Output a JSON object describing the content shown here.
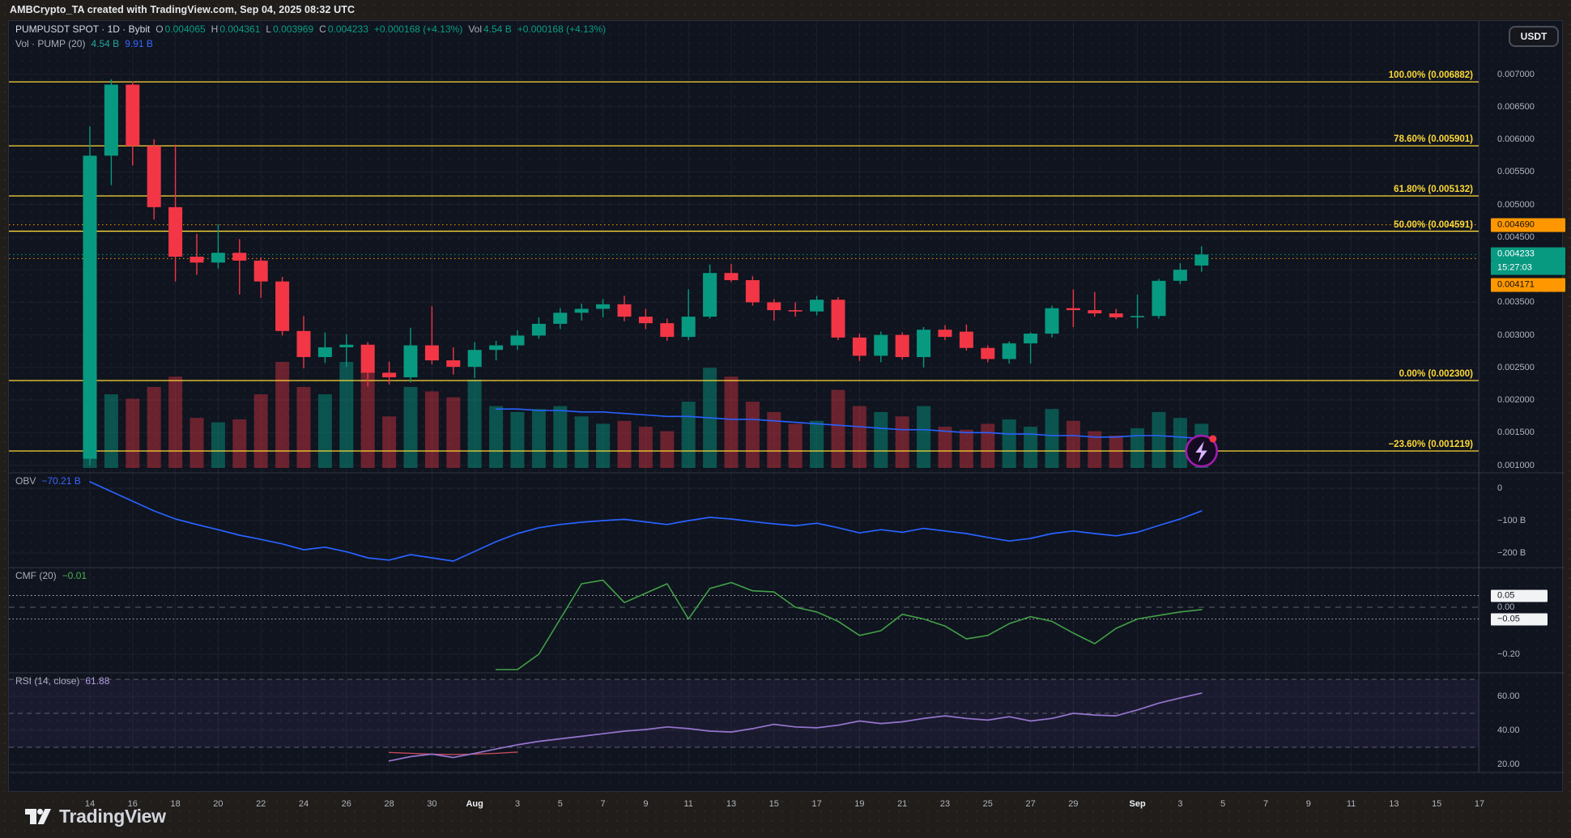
{
  "header": {
    "title": "AMBCrypto_TA created with TradingView.com, Sep 04, 2025 08:32 UTC"
  },
  "toolbar": {
    "currency_button": "USDT"
  },
  "footer": {
    "brand": "TradingView"
  },
  "colors": {
    "up": "#089981",
    "down": "#f23645",
    "vol_up": "rgba(8,153,129,0.48)",
    "vol_down": "rgba(242,54,69,0.40)",
    "fib": "#fdd835",
    "alert_orange": "#ff9800",
    "last_teal": "#089981",
    "blue": "#2962ff",
    "cmf_green": "#43a047",
    "rsi_purple": "#9575cd",
    "rsi_ma_red": "#c2495c",
    "grid": "rgba(240,243,250,0.055)",
    "separator": "rgba(255,255,255,0.14)",
    "band_fill": "rgba(126,87,194,0.10)",
    "band_line": "#9598a1"
  },
  "legend": {
    "row1": [
      {
        "t": "PUMPUSDT SPOT · 1D · Bybit",
        "k": "c-white",
        "tight": false
      },
      {
        "t": "O",
        "k": "c-dim",
        "tight": true
      },
      {
        "t": "0.004065",
        "k": "c-green",
        "tight": false
      },
      {
        "t": "H",
        "k": "c-dim",
        "tight": true
      },
      {
        "t": "0.004361",
        "k": "c-green",
        "tight": false
      },
      {
        "t": "L",
        "k": "c-dim",
        "tight": true
      },
      {
        "t": "0.003969",
        "k": "c-green",
        "tight": false
      },
      {
        "t": "C",
        "k": "c-dim",
        "tight": true
      },
      {
        "t": "0.004233",
        "k": "c-green",
        "tight": false
      },
      {
        "t": "+0.000168 (+4.13%)",
        "k": "c-green",
        "tight": false
      },
      {
        "t": "Vol",
        "k": "c-dim",
        "tight": true
      },
      {
        "t": "4.54 B",
        "k": "c-green",
        "tight": false
      },
      {
        "t": "+0.000168 (+4.13%)",
        "k": "c-green",
        "tight": false
      }
    ],
    "row2": [
      {
        "t": "Vol · PUMP (20)",
        "k": "c-dim",
        "tight": false
      },
      {
        "t": "4.54 B",
        "k": "c-teal",
        "tight": false
      },
      {
        "t": "9.91 B",
        "k": "c-blue",
        "tight": false
      }
    ],
    "obv": [
      {
        "t": "OBV",
        "k": "c-dim",
        "tight": false
      },
      {
        "t": "−70.21 B",
        "k": "c-blue",
        "tight": false
      }
    ],
    "cmf": [
      {
        "t": "CMF (20)",
        "k": "c-dim",
        "tight": false
      },
      {
        "t": "−0.01",
        "k": "c-lgreen",
        "tight": false
      }
    ],
    "rsi": [
      {
        "t": "RSI (14, close)",
        "k": "c-dim",
        "tight": false
      },
      {
        "t": "61.88",
        "k": "c-purple",
        "tight": false
      }
    ]
  },
  "axes": {
    "price_ticks": [
      {
        "t": "0.007000",
        "v": 0.007
      },
      {
        "t": "0.006500",
        "v": 0.0065
      },
      {
        "t": "0.006000",
        "v": 0.006
      },
      {
        "t": "0.005500",
        "v": 0.0055
      },
      {
        "t": "0.005000",
        "v": 0.005
      },
      {
        "t": "0.004500",
        "v": 0.0045
      },
      {
        "t": "0.004000",
        "v": 0.004
      },
      {
        "t": "0.003500",
        "v": 0.0035
      },
      {
        "t": "0.003000",
        "v": 0.003
      },
      {
        "t": "0.002500",
        "v": 0.0025
      },
      {
        "t": "0.002000",
        "v": 0.002
      },
      {
        "t": "0.001500",
        "v": 0.0015
      },
      {
        "t": "0.001000",
        "v": 0.001
      }
    ],
    "obv_ticks": [
      {
        "t": "0",
        "v": 0
      },
      {
        "t": "−100 B",
        "v": -100
      },
      {
        "t": "−200 B",
        "v": -200
      }
    ],
    "cmf_ticks": [
      {
        "t": "0.05",
        "v": 0.05,
        "boxed": true
      },
      {
        "t": "0.00",
        "v": 0.0,
        "boxed": false
      },
      {
        "t": "−0.05",
        "v": -0.05,
        "boxed": true
      },
      {
        "t": "−0.20",
        "v": -0.2,
        "boxed": false
      }
    ],
    "rsi_ticks": [
      {
        "t": "60.00",
        "v": 60
      },
      {
        "t": "40.00",
        "v": 40
      },
      {
        "t": "20.00",
        "v": 20
      }
    ],
    "x_ticks": [
      {
        "t": "14",
        "i": 0,
        "major": false
      },
      {
        "t": "16",
        "i": 2,
        "major": false
      },
      {
        "t": "18",
        "i": 4,
        "major": false
      },
      {
        "t": "20",
        "i": 6,
        "major": false
      },
      {
        "t": "22",
        "i": 8,
        "major": false
      },
      {
        "t": "24",
        "i": 10,
        "major": false
      },
      {
        "t": "26",
        "i": 12,
        "major": false
      },
      {
        "t": "28",
        "i": 14,
        "major": false
      },
      {
        "t": "30",
        "i": 16,
        "major": false
      },
      {
        "t": "Aug",
        "i": 18,
        "major": true
      },
      {
        "t": "3",
        "i": 20,
        "major": false
      },
      {
        "t": "5",
        "i": 22,
        "major": false
      },
      {
        "t": "7",
        "i": 24,
        "major": false
      },
      {
        "t": "9",
        "i": 26,
        "major": false
      },
      {
        "t": "11",
        "i": 28,
        "major": false
      },
      {
        "t": "13",
        "i": 30,
        "major": false
      },
      {
        "t": "15",
        "i": 32,
        "major": false
      },
      {
        "t": "17",
        "i": 34,
        "major": false
      },
      {
        "t": "19",
        "i": 36,
        "major": false
      },
      {
        "t": "21",
        "i": 38,
        "major": false
      },
      {
        "t": "23",
        "i": 40,
        "major": false
      },
      {
        "t": "25",
        "i": 42,
        "major": false
      },
      {
        "t": "27",
        "i": 44,
        "major": false
      },
      {
        "t": "29",
        "i": 46,
        "major": false
      },
      {
        "t": "Sep",
        "i": 49,
        "major": true
      },
      {
        "t": "3",
        "i": 51,
        "major": false
      },
      {
        "t": "5",
        "i": 53,
        "major": false
      },
      {
        "t": "7",
        "i": 55,
        "major": false
      },
      {
        "t": "9",
        "i": 57,
        "major": false
      },
      {
        "t": "11",
        "i": 59,
        "major": false
      },
      {
        "t": "13",
        "i": 61,
        "major": false
      },
      {
        "t": "15",
        "i": 63,
        "major": false
      },
      {
        "t": "17",
        "i": 65,
        "major": false
      }
    ]
  },
  "chart_data": {
    "type": "candlestick",
    "title": "PUMPUSDT SPOT · 1D · Bybit",
    "symbol": "PUMPUSDT",
    "exchange": "Bybit",
    "interval": "1D",
    "legend_ohlc": {
      "open": 0.004065,
      "high": 0.004361,
      "low": 0.003969,
      "close": 0.004233,
      "change": "+0.000168 (+4.13%)",
      "volume": "4.54 B"
    },
    "x_range": [
      "Jul 14",
      "Sep 4"
    ],
    "y_axis_range": [
      0.00096,
      0.00735
    ],
    "grid": true,
    "candles": [
      [
        "Jul 14",
        0.0011,
        0.0062,
        0.001,
        0.00575,
        1.0
      ],
      [
        "Jul 15",
        0.00575,
        0.00692,
        0.0053,
        0.00684,
        0.5
      ],
      [
        "Jul 16",
        0.00684,
        0.00689,
        0.0056,
        0.0059,
        0.47
      ],
      [
        "Jul 17",
        0.0059,
        0.006,
        0.00477,
        0.00496,
        0.55
      ],
      [
        "Jul 18",
        0.00496,
        0.00592,
        0.00382,
        0.0042,
        0.62
      ],
      [
        "Jul 19",
        0.0042,
        0.00455,
        0.00392,
        0.00411,
        0.34
      ],
      [
        "Jul 20",
        0.00411,
        0.0047,
        0.00402,
        0.00426,
        0.31
      ],
      [
        "Jul 21",
        0.00426,
        0.00447,
        0.00362,
        0.00414,
        0.33
      ],
      [
        "Jul 22",
        0.00414,
        0.00419,
        0.00357,
        0.00382,
        0.5
      ],
      [
        "Jul 23",
        0.00382,
        0.00389,
        0.00299,
        0.00306,
        0.72
      ],
      [
        "Jul 24",
        0.00306,
        0.00329,
        0.00249,
        0.00266,
        0.55
      ],
      [
        "Jul 25",
        0.00266,
        0.00304,
        0.00257,
        0.00281,
        0.5
      ],
      [
        "Jul 26",
        0.00281,
        0.00301,
        0.00251,
        0.00285,
        0.72
      ],
      [
        "Jul 27",
        0.00285,
        0.00289,
        0.00221,
        0.00242,
        0.66
      ],
      [
        "Jul 28",
        0.00242,
        0.00259,
        0.00224,
        0.00235,
        0.35
      ],
      [
        "Jul 29",
        0.00235,
        0.00311,
        0.00227,
        0.00284,
        0.55
      ],
      [
        "Jul 30",
        0.00284,
        0.00344,
        0.00255,
        0.00261,
        0.52
      ],
      [
        "Jul 31",
        0.00261,
        0.00281,
        0.00239,
        0.00251,
        0.48
      ],
      [
        "Aug 1",
        0.00251,
        0.00289,
        0.00234,
        0.00277,
        0.6
      ],
      [
        "Aug 2",
        0.00277,
        0.00291,
        0.00261,
        0.00284,
        0.42
      ],
      [
        "Aug 3",
        0.00284,
        0.00307,
        0.00277,
        0.00299,
        0.38
      ],
      [
        "Aug 4",
        0.00299,
        0.00327,
        0.00294,
        0.00317,
        0.4
      ],
      [
        "Aug 5",
        0.00317,
        0.00341,
        0.00309,
        0.00334,
        0.42
      ],
      [
        "Aug 6",
        0.00334,
        0.00348,
        0.00322,
        0.0034,
        0.35
      ],
      [
        "Aug 7",
        0.0034,
        0.00355,
        0.00327,
        0.00347,
        0.3
      ],
      [
        "Aug 8",
        0.00347,
        0.0036,
        0.00321,
        0.00328,
        0.32
      ],
      [
        "Aug 9",
        0.00328,
        0.0034,
        0.00309,
        0.00318,
        0.28
      ],
      [
        "Aug 10",
        0.00318,
        0.00325,
        0.00291,
        0.00297,
        0.25
      ],
      [
        "Aug 11",
        0.00297,
        0.0037,
        0.00292,
        0.00328,
        0.45
      ],
      [
        "Aug 12",
        0.00328,
        0.00408,
        0.00325,
        0.00395,
        0.68
      ],
      [
        "Aug 13",
        0.00395,
        0.00409,
        0.00381,
        0.00384,
        0.62
      ],
      [
        "Aug 14",
        0.00384,
        0.0039,
        0.00345,
        0.0035,
        0.45
      ],
      [
        "Aug 15",
        0.0035,
        0.00355,
        0.00322,
        0.00338,
        0.38
      ],
      [
        "Aug 16",
        0.00338,
        0.0035,
        0.00328,
        0.00336,
        0.3
      ],
      [
        "Aug 17",
        0.00336,
        0.0036,
        0.0033,
        0.00354,
        0.32
      ],
      [
        "Aug 18",
        0.00354,
        0.00358,
        0.00292,
        0.00296,
        0.53
      ],
      [
        "Aug 19",
        0.00296,
        0.00302,
        0.0026,
        0.00268,
        0.42
      ],
      [
        "Aug 20",
        0.00268,
        0.00305,
        0.00258,
        0.003,
        0.38
      ],
      [
        "Aug 21",
        0.003,
        0.00304,
        0.00262,
        0.00266,
        0.35
      ],
      [
        "Aug 22",
        0.00266,
        0.00312,
        0.0025,
        0.00308,
        0.42
      ],
      [
        "Aug 23",
        0.00308,
        0.00315,
        0.00292,
        0.00297,
        0.28
      ],
      [
        "Aug 24",
        0.00305,
        0.00316,
        0.00276,
        0.0028,
        0.26
      ],
      [
        "Aug 25",
        0.0028,
        0.00284,
        0.00258,
        0.00263,
        0.3
      ],
      [
        "Aug 26",
        0.00263,
        0.0029,
        0.00256,
        0.00287,
        0.33
      ],
      [
        "Aug 27",
        0.00287,
        0.00304,
        0.00256,
        0.00302,
        0.28
      ],
      [
        "Aug 28",
        0.00302,
        0.00345,
        0.00296,
        0.00341,
        0.4
      ],
      [
        "Aug 29",
        0.00341,
        0.0037,
        0.00312,
        0.00338,
        0.32
      ],
      [
        "Aug 30",
        0.00338,
        0.00366,
        0.00328,
        0.00333,
        0.25
      ],
      [
        "Aug 31",
        0.00333,
        0.0034,
        0.00324,
        0.00327,
        0.22
      ],
      [
        "Sep 1",
        0.00327,
        0.00362,
        0.0031,
        0.00329,
        0.27
      ],
      [
        "Sep 2",
        0.00329,
        0.00386,
        0.00325,
        0.00383,
        0.38
      ],
      [
        "Sep 3",
        0.00383,
        0.0041,
        0.00378,
        0.004,
        0.34
      ],
      [
        "Sep 4",
        0.004065,
        0.004361,
        0.003969,
        0.004233,
        0.3
      ]
    ],
    "fib_retracement": [
      {
        "label": "100.00% (0.006882)",
        "pct": 100.0,
        "price": 0.006882
      },
      {
        "label": "78.60% (0.005901)",
        "pct": 78.6,
        "price": 0.005901
      },
      {
        "label": "61.80% (0.005132)",
        "pct": 61.8,
        "price": 0.005132
      },
      {
        "label": "50.00% (0.004591)",
        "pct": 50.0,
        "price": 0.004591
      },
      {
        "label": "0.00% (0.002300)",
        "pct": 0.0,
        "price": 0.0023
      },
      {
        "label": "−23.60% (0.001219)",
        "pct": -23.6,
        "price": 0.001219
      }
    ],
    "alert_lines": [
      {
        "label": "0.004690",
        "price": 0.00469
      },
      {
        "label": "0.004171",
        "price": 0.004171
      }
    ],
    "last_price": {
      "value": 0.004233,
      "label": "0.004233",
      "countdown": "15:27:03"
    },
    "indicators": {
      "vol_ma_20_rel": {
        "start_index": 19,
        "values": [
          0.4,
          0.4,
          0.39,
          0.39,
          0.38,
          0.38,
          0.37,
          0.36,
          0.35,
          0.35,
          0.34,
          0.33,
          0.33,
          0.32,
          0.31,
          0.3,
          0.29,
          0.28,
          0.27,
          0.26,
          0.26,
          0.25,
          0.24,
          0.24,
          0.23,
          0.23,
          0.22,
          0.22,
          0.21,
          0.21,
          0.22,
          0.22,
          0.21,
          0.2
        ]
      },
      "obv_billions": {
        "start_index": 0,
        "current": -70.21,
        "values": [
          20,
          -10,
          -40,
          -70,
          -95,
          -112,
          -128,
          -145,
          -158,
          -172,
          -190,
          -182,
          -196,
          -215,
          -222,
          -205,
          -215,
          -225,
          -195,
          -165,
          -140,
          -122,
          -112,
          -105,
          -100,
          -96,
          -104,
          -112,
          -100,
          -90,
          -95,
          -103,
          -110,
          -116,
          -108,
          -122,
          -138,
          -128,
          -136,
          -124,
          -132,
          -140,
          -152,
          -163,
          -155,
          -140,
          -132,
          -140,
          -147,
          -136,
          -115,
          -95,
          -70.21
        ]
      },
      "cmf_20": {
        "start_index": 19,
        "current": -0.01,
        "bands": [
          0.05,
          -0.05
        ],
        "values": [
          -0.27,
          -0.29,
          -0.2,
          -0.05,
          0.1,
          0.115,
          0.02,
          0.06,
          0.1,
          -0.05,
          0.08,
          0.105,
          0.07,
          0.065,
          0.0,
          -0.02,
          -0.06,
          -0.12,
          -0.1,
          -0.03,
          -0.05,
          -0.08,
          -0.135,
          -0.12,
          -0.07,
          -0.04,
          -0.06,
          -0.11,
          -0.155,
          -0.09,
          -0.05,
          -0.035,
          -0.02,
          -0.01
        ]
      },
      "rsi_14": {
        "start_index": 14,
        "current": 61.88,
        "bands": [
          70,
          50,
          30
        ],
        "values": [
          22,
          24.5,
          26,
          24,
          26.5,
          29,
          31.5,
          33.5,
          35,
          36.5,
          38,
          39.5,
          40.5,
          42,
          41,
          39.5,
          39,
          41,
          43.5,
          42,
          41.5,
          43,
          45.5,
          44,
          45,
          47,
          48.5,
          47,
          46,
          48,
          45.5,
          47,
          50,
          49,
          48.5,
          52,
          56,
          59,
          61.88
        ]
      },
      "rsi_ma": {
        "start_index": 14,
        "values": [
          27,
          26.5,
          26,
          25.8,
          26,
          26.5,
          27.2
        ]
      }
    }
  }
}
